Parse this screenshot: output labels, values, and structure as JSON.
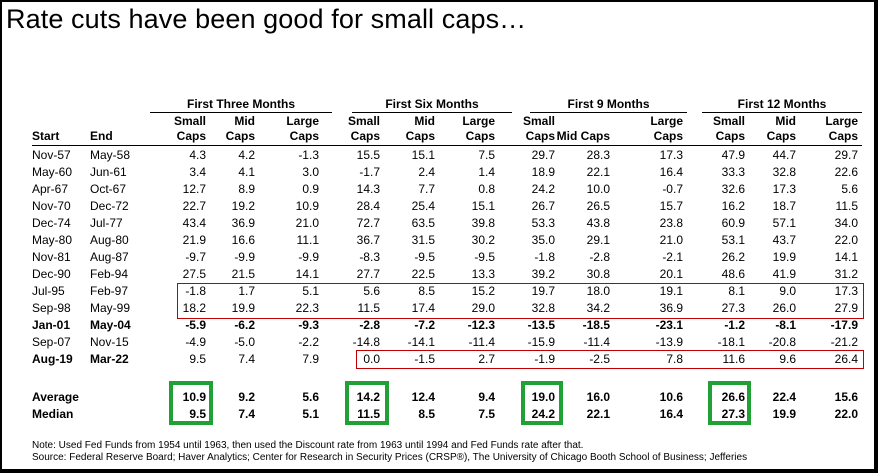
{
  "title": "Rate cuts have been good for small caps…",
  "groups": [
    "First Three Months",
    "First Six Months",
    "First 9 Months",
    "First 12 Months"
  ],
  "columns": {
    "start": "Start",
    "end": "End",
    "g0": [
      [
        "Small",
        "Caps"
      ],
      [
        "Mid",
        "Caps"
      ],
      [
        "Large",
        "Caps"
      ]
    ],
    "g1": [
      [
        "Small",
        "Caps"
      ],
      [
        "Mid",
        "Caps"
      ],
      [
        "Large",
        "Caps"
      ]
    ],
    "g2": [
      [
        "Small",
        "Caps"
      ],
      [
        "",
        "Mid Caps"
      ],
      [
        "Large",
        "Caps"
      ]
    ],
    "g3": [
      [
        "Small",
        "Caps"
      ],
      [
        "Mid",
        "Caps"
      ],
      [
        "Large",
        "Caps"
      ]
    ]
  },
  "rows": [
    {
      "start": "Nov-57",
      "end": "May-58",
      "bold": false,
      "v": [
        "4.3",
        "4.2",
        "-1.3",
        "15.5",
        "15.1",
        "7.5",
        "29.7",
        "28.3",
        "17.3",
        "47.9",
        "44.7",
        "29.7"
      ]
    },
    {
      "start": "May-60",
      "end": "Jun-61",
      "bold": false,
      "v": [
        "3.4",
        "4.1",
        "3.0",
        "-1.7",
        "2.4",
        "1.4",
        "18.9",
        "22.1",
        "16.4",
        "33.3",
        "32.8",
        "22.6"
      ]
    },
    {
      "start": "Apr-67",
      "end": "Oct-67",
      "bold": false,
      "v": [
        "12.7",
        "8.9",
        "0.9",
        "14.3",
        "7.7",
        "0.8",
        "24.2",
        "10.0",
        "-0.7",
        "32.6",
        "17.3",
        "5.6"
      ]
    },
    {
      "start": "Nov-70",
      "end": "Dec-72",
      "bold": false,
      "v": [
        "22.7",
        "19.2",
        "10.9",
        "28.4",
        "25.4",
        "15.1",
        "26.7",
        "26.5",
        "15.7",
        "16.2",
        "18.7",
        "11.5"
      ]
    },
    {
      "start": "Dec-74",
      "end": "Jul-77",
      "bold": false,
      "v": [
        "43.4",
        "36.9",
        "21.0",
        "72.7",
        "63.5",
        "39.8",
        "53.3",
        "43.8",
        "23.8",
        "60.9",
        "57.1",
        "34.0"
      ]
    },
    {
      "start": "May-80",
      "end": "Aug-80",
      "bold": false,
      "v": [
        "21.9",
        "16.6",
        "11.1",
        "36.7",
        "31.5",
        "30.2",
        "35.0",
        "29.1",
        "21.0",
        "53.1",
        "43.7",
        "22.0"
      ]
    },
    {
      "start": "Nov-81",
      "end": "Aug-87",
      "bold": false,
      "v": [
        "-9.7",
        "-9.9",
        "-9.9",
        "-8.3",
        "-9.5",
        "-9.5",
        "-1.8",
        "-2.8",
        "-2.1",
        "26.2",
        "19.9",
        "14.1"
      ]
    },
    {
      "start": "Dec-90",
      "end": "Feb-94",
      "bold": false,
      "v": [
        "27.5",
        "21.5",
        "14.1",
        "27.7",
        "22.5",
        "13.3",
        "39.2",
        "30.8",
        "20.1",
        "48.6",
        "41.9",
        "31.2"
      ]
    },
    {
      "start": "Jul-95",
      "end": "Feb-97",
      "bold": false,
      "v": [
        "-1.8",
        "1.7",
        "5.1",
        "5.6",
        "8.5",
        "15.2",
        "19.7",
        "18.0",
        "19.1",
        "8.1",
        "9.0",
        "17.3"
      ]
    },
    {
      "start": "Sep-98",
      "end": "May-99",
      "bold": false,
      "v": [
        "18.2",
        "19.9",
        "22.3",
        "11.5",
        "17.4",
        "29.0",
        "32.8",
        "34.2",
        "36.9",
        "27.3",
        "26.0",
        "27.9"
      ]
    },
    {
      "start": "Jan-01",
      "end": "May-04",
      "bold": true,
      "v": [
        "-5.9",
        "-6.2",
        "-9.3",
        "-2.8",
        "-7.2",
        "-12.3",
        "-13.5",
        "-18.5",
        "-23.1",
        "-1.2",
        "-8.1",
        "-17.9"
      ]
    },
    {
      "start": "Sep-07",
      "end": "Nov-15",
      "bold": false,
      "v": [
        "-4.9",
        "-5.0",
        "-2.2",
        "-14.8",
        "-14.1",
        "-11.4",
        "-15.9",
        "-11.4",
        "-13.9",
        "-18.1",
        "-20.8",
        "-21.2"
      ]
    },
    {
      "start": "Aug-19",
      "end": "Mar-22",
      "bold": "partial",
      "v": [
        "9.5",
        "7.4",
        "7.9",
        "0.0",
        "-1.5",
        "2.7",
        "-1.9",
        "-2.5",
        "7.8",
        "11.6",
        "9.6",
        "26.4"
      ]
    }
  ],
  "summary": [
    {
      "label": "Average",
      "v": [
        "10.9",
        "9.2",
        "5.6",
        "14.2",
        "12.4",
        "9.4",
        "19.0",
        "16.0",
        "10.6",
        "26.6",
        "22.4",
        "15.6"
      ]
    },
    {
      "label": "Median",
      "v": [
        "9.5",
        "7.4",
        "5.1",
        "11.5",
        "8.5",
        "7.5",
        "24.2",
        "22.1",
        "16.4",
        "27.3",
        "19.9",
        "22.0"
      ]
    }
  ],
  "notes": [
    "Note: Used Fed Funds from 1954 until 1963, then used the Discount rate from 1963 until 1994 and Fed Funds rate after that.",
    "Source: Federal Reserve Board; Haver Analytics; Center for Research in Security Prices (CRSP®), The University of Chicago Booth School of Business; Jefferies"
  ],
  "colors": {
    "highlight_red": "#c00000",
    "highlight_green": "#21a035"
  }
}
